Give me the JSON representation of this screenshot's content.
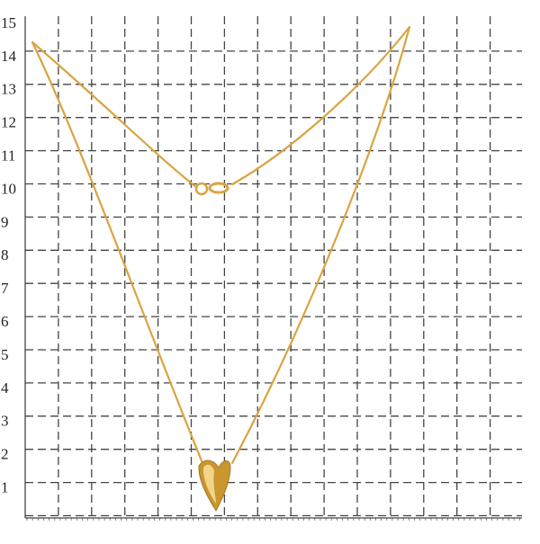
{
  "ruler": {
    "labels": [
      15,
      14,
      13,
      12,
      11,
      10,
      9,
      8,
      7,
      6,
      5,
      4,
      3,
      2,
      1
    ]
  }
}
